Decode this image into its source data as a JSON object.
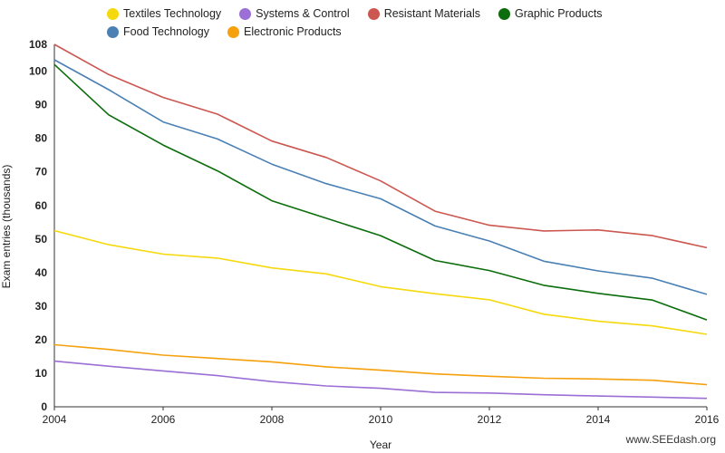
{
  "chart_data": {
    "type": "line",
    "title": "",
    "xlabel": "Year",
    "ylabel": "Exam entries (thousands)",
    "xlim": [
      2004,
      2016
    ],
    "ylim": [
      0,
      108
    ],
    "xticks": [
      2004,
      2006,
      2008,
      2010,
      2012,
      2014,
      2016
    ],
    "yticks": [
      0,
      10,
      20,
      30,
      40,
      50,
      60,
      70,
      80,
      90,
      100,
      108
    ],
    "grid": false,
    "legend": "top",
    "x": [
      2004,
      2005,
      2006,
      2007,
      2008,
      2009,
      2010,
      2011,
      2012,
      2013,
      2014,
      2015,
      2016
    ],
    "series": [
      {
        "name": "Textiles Technology",
        "color": "#f5d90c",
        "values": [
          52.5,
          48.3,
          45.5,
          44.3,
          41.4,
          39.6,
          35.8,
          33.7,
          31.9,
          27.6,
          25.5,
          24.1,
          21.6
        ]
      },
      {
        "name": "Systems & Control",
        "color": "#9b6fd6",
        "values": [
          13.6,
          12.1,
          10.7,
          9.3,
          7.5,
          6.2,
          5.5,
          4.3,
          4.1,
          3.6,
          3.2,
          2.9,
          2.5
        ]
      },
      {
        "name": "Resistant Materials",
        "color": "#cc5650",
        "values": [
          108,
          99,
          92.2,
          87.2,
          79.2,
          74.3,
          67.3,
          58.3,
          54.1,
          52.4,
          52.7,
          51,
          47.4
        ]
      },
      {
        "name": "Graphic Products",
        "color": "#0c6d0c",
        "values": [
          102,
          87,
          78,
          70.3,
          61.4,
          56.2,
          51,
          43.6,
          40.6,
          36.2,
          33.8,
          31.8,
          25.9
        ]
      },
      {
        "name": "Food Technology",
        "color": "#4a80b4",
        "values": [
          103.4,
          94.5,
          84.9,
          79.8,
          72.3,
          66.5,
          62,
          53.9,
          49.4,
          43.4,
          40.5,
          38.3,
          33.5
        ]
      },
      {
        "name": "Electronic Products",
        "color": "#f5a00c",
        "values": [
          18.5,
          17.1,
          15.4,
          14.4,
          13.4,
          11.9,
          10.9,
          9.8,
          9.1,
          8.5,
          8.3,
          7.9,
          6.6
        ]
      }
    ]
  },
  "watermark": "www.SEEdash.org"
}
